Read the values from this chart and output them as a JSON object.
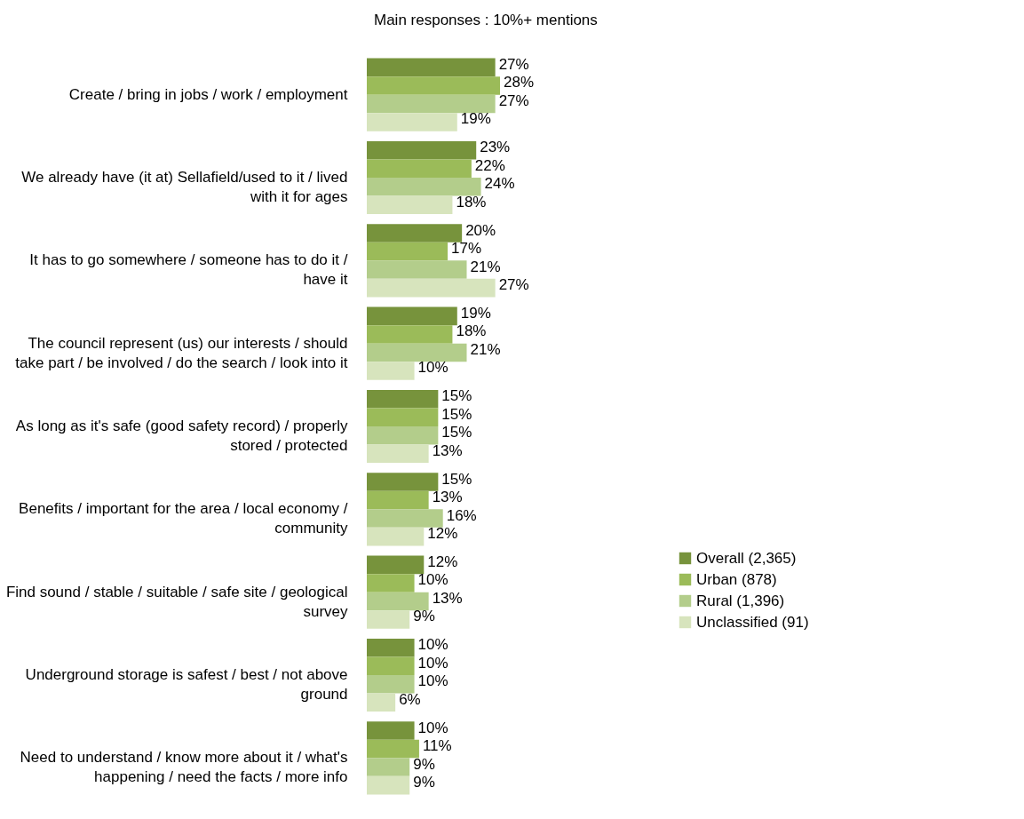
{
  "chart_data": {
    "type": "bar",
    "orientation": "horizontal",
    "title": "Main responses : 10%+ mentions",
    "categories": [
      "Create / bring in jobs / work / employment",
      "We already have (it at) Sellafield/used to it / lived with it for ages",
      "It has to go somewhere / someone has to do it / have it",
      "The council represent (us) our interests / should take part / be involved / do the search / look into it",
      "As long as it's safe (good safety record) / properly stored / protected",
      "Benefits / important for the area / local economy / community",
      "Find sound / stable / suitable / safe site / geological survey",
      "Underground storage is safest / best / not above ground",
      "Need to understand / know more about it / what's happening / need the facts / more info"
    ],
    "series": [
      {
        "name": "Overall (2,365)",
        "color": "#77933c",
        "values": [
          27,
          23,
          20,
          19,
          15,
          15,
          12,
          10,
          10
        ],
        "value_labels": [
          "27%",
          "23%",
          "20%",
          "19%",
          "15%",
          "15%",
          "12%",
          "10%",
          "10%"
        ]
      },
      {
        "name": "Urban (878)",
        "color": "#9bbb59",
        "values": [
          28,
          22,
          17,
          18,
          15,
          13,
          10,
          10,
          11
        ],
        "value_labels": [
          "28%",
          "22%",
          "17%",
          "18%",
          "15%",
          "13%",
          "10%",
          "10%",
          "11%"
        ]
      },
      {
        "name": "Rural (1,396)",
        "color": "#b3cd8b",
        "values": [
          27,
          24,
          21,
          21,
          15,
          16,
          13,
          10,
          9
        ],
        "value_labels": [
          "27%",
          "24%",
          "21%",
          "21%",
          "15%",
          "16%",
          "13%",
          "10%",
          "9%"
        ]
      },
      {
        "name": "Unclassified (91)",
        "color": "#d7e4bd",
        "values": [
          19,
          18,
          27,
          10,
          13,
          12,
          9,
          6,
          9
        ],
        "value_labels": [
          "19%",
          "18%",
          "27%",
          "10%",
          "13%",
          "12%",
          "9%",
          "6%",
          "9%"
        ]
      }
    ],
    "legend": "right"
  }
}
